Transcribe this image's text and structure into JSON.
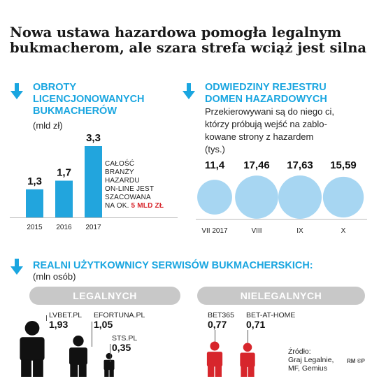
{
  "title": {
    "line1": "Nowa ustawa hazardowa pomogła legalnym",
    "line2": "bukmacherom, ale szara strefa wciąż jest silna"
  },
  "colors": {
    "accent": "#1aa6e0",
    "bars": "#22a5dd",
    "bubbles": "#a7d6f2",
    "legal": "#111111",
    "illegal": "#d7262c",
    "pill": "#c8c8c8"
  },
  "section1": {
    "icon": "down-arrow-icon",
    "head1": "OBROTY",
    "head2": "LICENCJONOWANYCH",
    "head3": "BUKMACHERÓW",
    "unit": "(mld zł)",
    "note_lines": [
      "CAŁOŚĆ",
      "BRANŻY",
      "HAZARDU",
      "ON-LINE JEST",
      "SZACOWANA"
    ],
    "note_prefix": "NA OK.",
    "note_value": "5 MLD ZŁ"
  },
  "section2": {
    "icon": "down-arrow-icon",
    "head1": "ODWIEDZINY REJESTRU",
    "head2": "DOMEN HAZARDOWYCH",
    "desc1": "Przekierowywani są do niego ci,",
    "desc2": "którzy próbują wejść na zablo-",
    "desc3": "kowane strony z hazardem",
    "unit": "(tys.)"
  },
  "section3": {
    "icon": "down-arrow-icon",
    "head": "REALNI UŻYTKOWNICY SERWISÓW BUKMACHERSKICH:",
    "unit": "(mln osób)",
    "legal_label": "LEGALNYCH",
    "illegal_label": "NIELEGALNYCH",
    "source1": "Źródło:",
    "source2": "Graj Legalnie,",
    "source3": "MF, Gemius",
    "logo": "RM ©P"
  },
  "chart_data": [
    {
      "type": "bar",
      "categories": [
        "2015",
        "2016",
        "2017"
      ],
      "values": [
        1.3,
        1.7,
        3.3
      ],
      "value_labels": [
        "1,3",
        "1,7",
        "3,3"
      ],
      "title": "OBROTY LICENCJONOWANYCH BUKMACHERÓW",
      "ylabel": "(mld zł)",
      "ylim": [
        0,
        3.3
      ]
    },
    {
      "type": "scatter",
      "categories": [
        "VII 2017",
        "VIII",
        "IX",
        "X"
      ],
      "values": [
        11.4,
        17.46,
        17.63,
        15.59
      ],
      "value_labels": [
        "11,4",
        "17,46",
        "17,63",
        "15,59"
      ],
      "title": "ODWIEDZINY REJESTRU DOMEN HAZARDOWYCH",
      "ylabel": "(tys.)"
    },
    {
      "type": "bar",
      "title": "REALNI UŻYTKOWNICY SERWISÓW BUKMACHERSKICH:",
      "ylabel": "(mln osób)",
      "series": [
        {
          "name": "LEGALNYCH",
          "categories": [
            "LVBET.PL",
            "EFORTUNA.PL",
            "STS.PL"
          ],
          "values": [
            1.93,
            1.05,
            0.35
          ],
          "value_labels": [
            "1,93",
            "1,05",
            "0,35"
          ]
        },
        {
          "name": "NIELEGALNYCH",
          "categories": [
            "BET365",
            "BET-AT-HOME"
          ],
          "values": [
            0.77,
            0.71
          ],
          "value_labels": [
            "0,77",
            "0,71"
          ]
        }
      ]
    }
  ]
}
